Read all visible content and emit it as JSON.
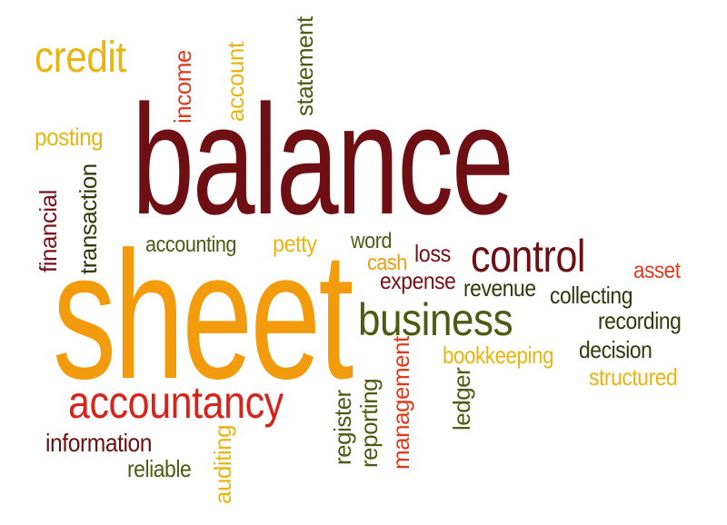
{
  "cloud": {
    "words": {
      "balance": {
        "text": "balance",
        "color": "#6e0f13"
      },
      "sheet": {
        "text": "sheet",
        "color": "#f29b0c"
      },
      "credit": {
        "text": "credit",
        "color": "#e9b510"
      },
      "posting": {
        "text": "posting",
        "color": "#e9b510"
      },
      "income": {
        "text": "income",
        "color": "#e03a1e"
      },
      "account": {
        "text": "account",
        "color": "#e9b510"
      },
      "statement": {
        "text": "statement",
        "color": "#4d5a12"
      },
      "transaction": {
        "text": "transaction",
        "color": "#2f3a0a"
      },
      "financial": {
        "text": "financial",
        "color": "#7a1018"
      },
      "accounting": {
        "text": "accounting",
        "color": "#4d5a12"
      },
      "petty": {
        "text": "petty",
        "color": "#e9b510"
      },
      "word": {
        "text": "word",
        "color": "#4d5a12"
      },
      "loss": {
        "text": "loss",
        "color": "#7a1018"
      },
      "cash": {
        "text": "cash",
        "color": "#f29b0c"
      },
      "control": {
        "text": "control",
        "color": "#6e0f13"
      },
      "asset": {
        "text": "asset",
        "color": "#e03a1e"
      },
      "expense": {
        "text": "expense",
        "color": "#7a1018"
      },
      "revenue": {
        "text": "revenue",
        "color": "#2f3a0a"
      },
      "collecting": {
        "text": "collecting",
        "color": "#2f3a0a"
      },
      "business": {
        "text": "business",
        "color": "#4d5a12"
      },
      "recording": {
        "text": "recording",
        "color": "#2f3a0a"
      },
      "bookkeeping": {
        "text": "bookkeeping",
        "color": "#e9b510"
      },
      "decision": {
        "text": "decision",
        "color": "#2f3a0a"
      },
      "structured": {
        "text": "structured",
        "color": "#e9b510"
      },
      "accountancy": {
        "text": "accountancy",
        "color": "#d8231a"
      },
      "information": {
        "text": "information",
        "color": "#6e0f13"
      },
      "reliable": {
        "text": "reliable",
        "color": "#4d5a12"
      },
      "auditing": {
        "text": "auditing",
        "color": "#e9b510"
      },
      "register": {
        "text": "register",
        "color": "#4d5a12"
      },
      "reporting": {
        "text": "reporting",
        "color": "#4d5a12"
      },
      "management": {
        "text": "management",
        "color": "#e03a1e"
      },
      "ledger": {
        "text": "ledger",
        "color": "#4d5a12"
      }
    }
  }
}
